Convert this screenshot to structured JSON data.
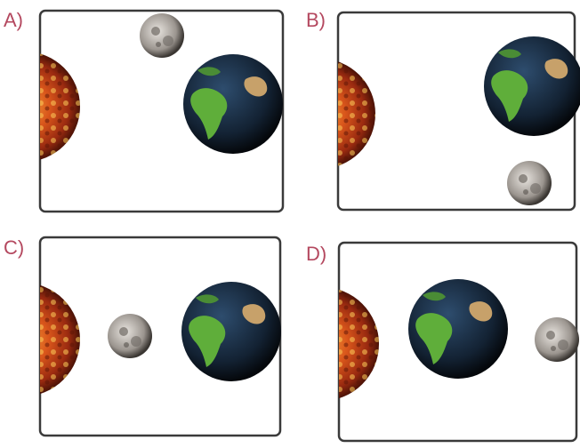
{
  "panels": [
    {
      "label": "A)"
    },
    {
      "label": "B)"
    },
    {
      "label": "C)"
    },
    {
      "label": "D)"
    }
  ]
}
